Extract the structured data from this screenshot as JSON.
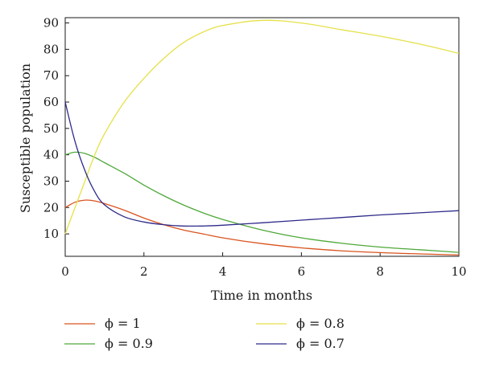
{
  "chart_data": {
    "type": "line",
    "xlabel": "Time in months",
    "ylabel": "Susceptible population",
    "xlim": [
      0,
      10
    ],
    "ylim": [
      1.5,
      92
    ],
    "xticks": [
      "0",
      "2",
      "4",
      "6",
      "8",
      "10"
    ],
    "yticks": [
      "10",
      "20",
      "30",
      "40",
      "50",
      "60",
      "70",
      "80",
      "90"
    ],
    "grid": false,
    "legend_position": "bottom",
    "x": [
      0,
      0.25,
      0.5,
      0.75,
      1,
      1.5,
      2,
      2.5,
      3,
      3.5,
      4,
      5,
      6,
      7,
      8,
      9,
      10
    ],
    "series": [
      {
        "name": "ϕ = 1",
        "color": "#d9531e",
        "values": [
          20.0,
          22.0,
          22.8,
          22.5,
          21.5,
          19.0,
          16.0,
          13.5,
          11.5,
          10.0,
          8.5,
          6.3,
          4.7,
          3.6,
          2.9,
          2.4,
          2.0
        ]
      },
      {
        "name": "ϕ = 0.9",
        "color": "#4fa839",
        "values": [
          40.0,
          41.0,
          40.5,
          39.0,
          37.0,
          33.0,
          28.5,
          24.5,
          21.0,
          18.0,
          15.5,
          11.5,
          8.5,
          6.5,
          5.0,
          4.0,
          3.0
        ]
      },
      {
        "name": "ϕ = 0.8",
        "color": "#e5e14a",
        "values": [
          10.0,
          20.0,
          30.0,
          40.0,
          48.0,
          60.0,
          69.0,
          76.5,
          82.5,
          86.5,
          89.0,
          91.0,
          90.0,
          87.5,
          85.0,
          82.0,
          78.5
        ]
      },
      {
        "name": "ϕ = 0.7",
        "color": "#2e2a8a",
        "values": [
          60.0,
          45.0,
          34.0,
          26.0,
          21.0,
          16.5,
          14.5,
          13.5,
          13.0,
          13.0,
          13.3,
          14.2,
          15.2,
          16.2,
          17.2,
          18.0,
          18.8
        ]
      }
    ]
  }
}
